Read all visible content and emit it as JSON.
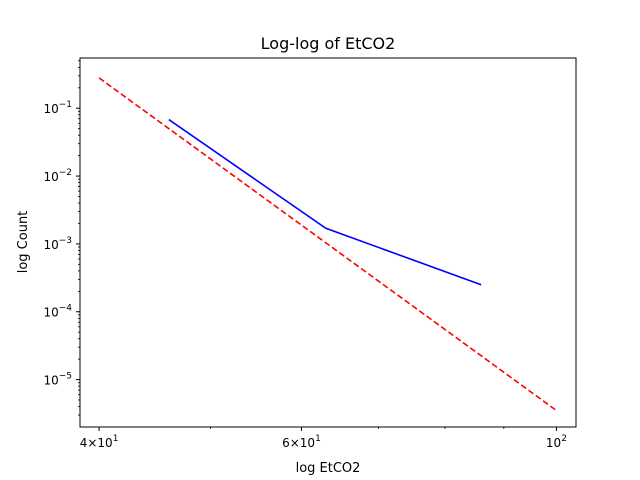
{
  "chart_data": {
    "type": "line",
    "title": "Log-log of EtCO2",
    "xlabel": "log EtCO2",
    "ylabel": "log Count",
    "x_scale": "log",
    "y_scale": "log",
    "xlim": [
      38.5,
      104
    ],
    "ylim": [
      2e-06,
      0.55
    ],
    "grid": false,
    "x_ticks": [
      {
        "value": 40,
        "base": "4×10",
        "exp": "1"
      },
      {
        "value": 60,
        "base": "6×10",
        "exp": "1"
      },
      {
        "value": 100,
        "base": "10",
        "exp": "2"
      }
    ],
    "x_minor_ticks": [
      50,
      70,
      80,
      90
    ],
    "y_ticks": [
      {
        "value": 1e-05,
        "base": "10",
        "exp": "−5"
      },
      {
        "value": 0.0001,
        "base": "10",
        "exp": "−4"
      },
      {
        "value": 0.001,
        "base": "10",
        "exp": "−3"
      },
      {
        "value": 0.01,
        "base": "10",
        "exp": "−2"
      },
      {
        "value": 0.1,
        "base": "10",
        "exp": "−1"
      }
    ],
    "series": [
      {
        "color": "#0000ff",
        "style": "solid",
        "x": [
          46,
          63,
          86
        ],
        "y": [
          0.068,
          0.0017,
          0.00025
        ]
      },
      {
        "color": "#ff0000",
        "style": "dashed",
        "x": [
          40,
          100
        ],
        "y": [
          0.28,
          3.5e-06
        ]
      }
    ]
  }
}
